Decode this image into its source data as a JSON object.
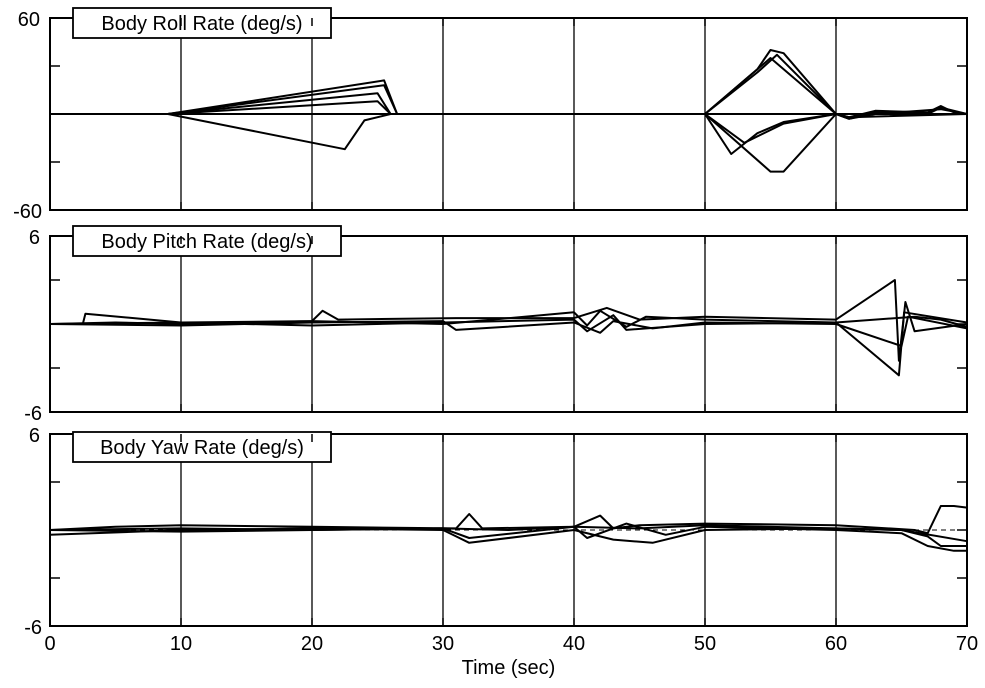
{
  "chart_data": {
    "type": "line",
    "xlabel": "Time (sec)",
    "xlim": [
      0,
      70
    ],
    "x_ticks": [
      0,
      10,
      20,
      30,
      40,
      50,
      60,
      70
    ],
    "panels": [
      {
        "title": "Body Roll Rate (deg/s)",
        "ylim": [
          -60,
          60
        ],
        "y_tick_labels": [
          "60",
          "-60"
        ],
        "reference_line": 0,
        "series": [
          {
            "x": [
              0,
              9,
              25.5,
              26.5,
              50,
              54,
              55,
              56,
              60,
              61,
              63,
              67,
              68,
              69,
              70
            ],
            "y": [
              0,
              0,
              21,
              0,
              0,
              28,
              40,
              38,
              0,
              -2,
              2,
              1,
              5,
              1,
              0
            ]
          },
          {
            "x": [
              0,
              9,
              25.5,
              26.5,
              50,
              54,
              55.5,
              60,
              61,
              63,
              67,
              68,
              70
            ],
            "y": [
              0,
              0,
              18,
              0,
              0,
              26,
              37,
              0,
              -3,
              1,
              0,
              4,
              0
            ]
          },
          {
            "x": [
              0,
              9,
              25,
              26,
              50,
              55,
              60,
              61,
              63,
              68,
              70
            ],
            "y": [
              0,
              0,
              13,
              0,
              0,
              35,
              0,
              -3,
              0,
              3,
              0
            ]
          },
          {
            "x": [
              0,
              9,
              25,
              26,
              50,
              60,
              70
            ],
            "y": [
              0,
              0,
              8,
              0,
              0,
              0,
              0
            ]
          },
          {
            "x": [
              0,
              9,
              22.5,
              24,
              26,
              50,
              55,
              56,
              60,
              61,
              70
            ],
            "y": [
              0,
              0,
              -22,
              -4,
              0,
              0,
              -36,
              -36,
              0,
              -2,
              0
            ]
          },
          {
            "x": [
              0,
              50,
              53,
              56,
              60,
              70
            ],
            "y": [
              0,
              0,
              -18,
              -6,
              0,
              0
            ]
          },
          {
            "x": [
              0,
              50,
              52,
              54,
              56,
              60,
              70
            ],
            "y": [
              0,
              0,
              -25,
              -12,
              -5,
              0,
              0
            ]
          }
        ]
      },
      {
        "title": "Body Pitch Rate (deg/s)",
        "ylim": [
          -6,
          6
        ],
        "y_tick_labels": [
          "6",
          "-6"
        ],
        "series": [
          {
            "x": [
              0,
              2.5,
              2.7,
              10,
              20,
              20.8,
              22,
              31,
              40,
              42.5,
              45,
              50,
              60,
              64.5,
              64.8,
              65.3,
              66,
              70
            ],
            "y": [
              0,
              0,
              0.7,
              0.1,
              0.2,
              0.9,
              0.3,
              0.4,
              0.4,
              1.1,
              0.3,
              0.5,
              0.3,
              3,
              -2.5,
              1.5,
              -0.5,
              0
            ]
          },
          {
            "x": [
              0,
              5,
              10,
              20,
              30,
              40,
              41,
              42,
              44,
              45.5,
              50,
              60,
              64.8,
              65.2,
              70
            ],
            "y": [
              0,
              0.1,
              0,
              0.2,
              0,
              0.8,
              -0.1,
              0.9,
              -0.2,
              0.5,
              0.3,
              0.1,
              -3.5,
              0.8,
              0.1
            ]
          },
          {
            "x": [
              0,
              10,
              20,
              30,
              31,
              40,
              42,
              43,
              46,
              50,
              60,
              65,
              65.5,
              70
            ],
            "y": [
              0,
              -0.1,
              0.1,
              0.2,
              -0.4,
              0.1,
              -0.6,
              0.2,
              -0.3,
              0.1,
              0,
              -1.5,
              0.5,
              -0.3
            ]
          },
          {
            "x": [
              0,
              10,
              20,
              30,
              40,
              41,
              43,
              44,
              50,
              60,
              66,
              68,
              70
            ],
            "y": [
              0,
              0.1,
              -0.1,
              0.1,
              0.3,
              -0.5,
              0.6,
              -0.4,
              0,
              0.1,
              0.5,
              0.3,
              -0.2
            ]
          }
        ]
      },
      {
        "title": "Body Yaw Rate (deg/s)",
        "ylim": [
          -6,
          6
        ],
        "y_tick_labels": [
          "6",
          "-6"
        ],
        "reference_line": 0,
        "series": [
          {
            "x": [
              0,
              5,
              10,
              20,
              31,
              32,
              33,
              40,
              42,
              43,
              45,
              50,
              60,
              66,
              67,
              68,
              69,
              70
            ],
            "y": [
              0,
              0.2,
              0.3,
              0.2,
              0.1,
              1.0,
              0.1,
              0.2,
              0.9,
              0.1,
              0.3,
              0.4,
              0.3,
              0,
              -0.2,
              1.5,
              1.5,
              1.4
            ]
          },
          {
            "x": [
              0,
              10,
              20,
              30,
              31,
              32,
              40,
              43,
              46,
              50,
              60,
              65,
              67,
              68,
              70
            ],
            "y": [
              -0.3,
              0,
              0.1,
              0,
              -0.4,
              -0.8,
              0,
              -0.6,
              -0.8,
              0,
              0.1,
              0,
              -0.4,
              -1.0,
              -1.0
            ]
          },
          {
            "x": [
              0,
              10,
              20,
              30,
              32,
              40,
              41,
              44,
              47,
              50,
              60,
              65,
              67,
              69,
              70
            ],
            "y": [
              0,
              -0.1,
              0,
              0.1,
              -0.5,
              0.2,
              -0.5,
              0.4,
              -0.3,
              0.2,
              0,
              -0.2,
              -1.0,
              -1.3,
              -1.3
            ]
          },
          {
            "x": [
              0,
              10,
              20,
              30,
              35,
              40,
              45,
              50,
              60,
              65,
              70
            ],
            "y": [
              0,
              0.1,
              0,
              0.1,
              0,
              0.2,
              0.1,
              0.3,
              0.1,
              0,
              -0.7
            ]
          }
        ]
      }
    ]
  }
}
